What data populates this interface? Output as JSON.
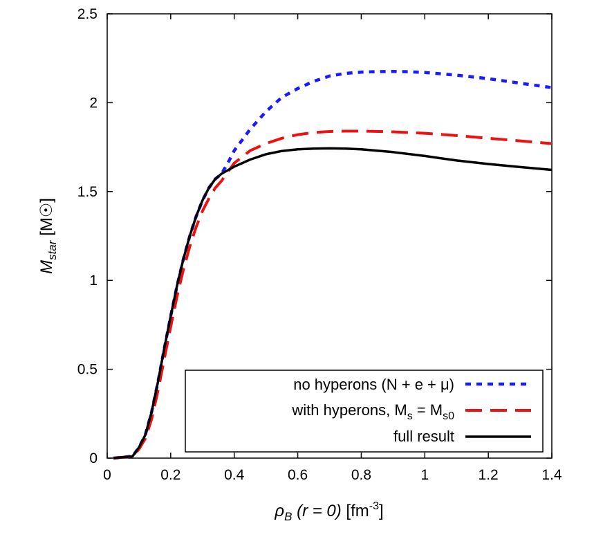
{
  "chart_data": {
    "type": "line",
    "xlabel": {
      "symbol": "ρ",
      "sub": "B",
      "cond": " (r = 0)",
      "unit_pre": " [fm",
      "unit_sup": "-3",
      "unit_post": "]"
    },
    "ylabel": {
      "symbol": "M",
      "sub": "star",
      "unit": " [M",
      "unit_sym": "☉",
      "unit_post": "]"
    },
    "xlim": [
      0,
      1.4
    ],
    "ylim": [
      0,
      2.5
    ],
    "xticks": [
      0,
      0.2,
      0.4,
      0.6,
      0.8,
      1,
      1.2,
      1.4
    ],
    "xtick_labels": [
      "0",
      "0.2",
      "0.4",
      "0.6",
      "0.8",
      "1",
      "1.2",
      "1.4"
    ],
    "yticks": [
      0,
      0.5,
      1,
      1.5,
      2,
      2.5
    ],
    "ytick_labels": [
      "0",
      "0.5",
      "1",
      "1.5",
      "2",
      "2.5"
    ],
    "grid": false,
    "legend_position": "bottom-right",
    "series": [
      {
        "name": "no hyperons (N + e + μ)",
        "label_parts": {
          "pre": "no hyperons (N + e + μ)"
        },
        "color": "#1a1aff",
        "style": "dotted",
        "x": [
          0.02,
          0.08,
          0.1,
          0.12,
          0.14,
          0.16,
          0.18,
          0.2,
          0.22,
          0.24,
          0.26,
          0.28,
          0.3,
          0.32,
          0.34,
          0.36,
          0.38,
          0.4,
          0.45,
          0.5,
          0.55,
          0.6,
          0.65,
          0.7,
          0.75,
          0.8,
          0.85,
          0.9,
          0.95,
          1.0,
          1.1,
          1.2,
          1.3,
          1.4
        ],
        "y": [
          0.0,
          0.01,
          0.06,
          0.13,
          0.26,
          0.43,
          0.62,
          0.8,
          0.97,
          1.12,
          1.25,
          1.36,
          1.45,
          1.52,
          1.57,
          1.6,
          1.66,
          1.73,
          1.85,
          1.95,
          2.03,
          2.08,
          2.12,
          2.15,
          2.165,
          2.172,
          2.175,
          2.176,
          2.174,
          2.17,
          2.155,
          2.135,
          2.11,
          2.085
        ]
      },
      {
        "name": "with hyperons, Ms = Ms0",
        "label_parts": {
          "pre": "with hyperons, M",
          "sub1": "s",
          "mid": " = M",
          "sub2": "s0"
        },
        "color": "#ee1111",
        "style": "dashed",
        "x": [
          0.02,
          0.08,
          0.1,
          0.12,
          0.14,
          0.16,
          0.18,
          0.2,
          0.22,
          0.24,
          0.26,
          0.28,
          0.3,
          0.32,
          0.34,
          0.36,
          0.38,
          0.4,
          0.45,
          0.5,
          0.55,
          0.6,
          0.65,
          0.7,
          0.75,
          0.8,
          0.9,
          1.0,
          1.1,
          1.2,
          1.3,
          1.4
        ],
        "y": [
          0.0,
          0.01,
          0.05,
          0.11,
          0.22,
          0.38,
          0.56,
          0.74,
          0.91,
          1.06,
          1.19,
          1.3,
          1.39,
          1.46,
          1.52,
          1.56,
          1.61,
          1.66,
          1.73,
          1.77,
          1.8,
          1.82,
          1.832,
          1.838,
          1.84,
          1.84,
          1.836,
          1.828,
          1.815,
          1.8,
          1.785,
          1.77
        ]
      },
      {
        "name": "full result",
        "label_parts": {
          "pre": "full result"
        },
        "color": "#000000",
        "style": "solid",
        "x": [
          0.02,
          0.08,
          0.1,
          0.12,
          0.14,
          0.16,
          0.18,
          0.2,
          0.22,
          0.24,
          0.26,
          0.28,
          0.3,
          0.32,
          0.34,
          0.36,
          0.38,
          0.4,
          0.45,
          0.5,
          0.55,
          0.6,
          0.65,
          0.7,
          0.75,
          0.8,
          0.9,
          1.0,
          1.1,
          1.2,
          1.3,
          1.4
        ],
        "y": [
          0.0,
          0.01,
          0.06,
          0.13,
          0.26,
          0.43,
          0.62,
          0.8,
          0.97,
          1.12,
          1.25,
          1.36,
          1.45,
          1.52,
          1.57,
          1.6,
          1.62,
          1.64,
          1.68,
          1.71,
          1.728,
          1.738,
          1.742,
          1.743,
          1.742,
          1.738,
          1.722,
          1.7,
          1.675,
          1.655,
          1.638,
          1.622
        ]
      }
    ]
  }
}
